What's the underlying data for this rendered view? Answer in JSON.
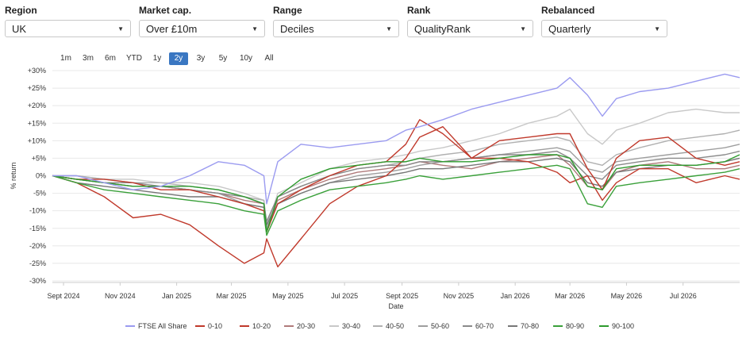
{
  "filters": {
    "region": {
      "label": "Region",
      "value": "UK"
    },
    "market_cap": {
      "label": "Market cap.",
      "value": "Over £10m"
    },
    "range": {
      "label": "Range",
      "value": "Deciles"
    },
    "rank": {
      "label": "Rank",
      "value": "QualityRank"
    },
    "rebalanced": {
      "label": "Rebalanced",
      "value": "Quarterly"
    }
  },
  "icons": {
    "dropdown": "caret-down-icon"
  },
  "ranges": {
    "items": [
      "1m",
      "3m",
      "6m",
      "YTD",
      "1y",
      "2y",
      "3y",
      "5y",
      "10y",
      "All"
    ],
    "active": "2y"
  },
  "chart_data": {
    "type": "line",
    "xlabel": "Date",
    "ylabel": "% return",
    "ylim": [
      -30,
      30
    ],
    "y_ticks": [
      "+30%",
      "+25%",
      "+20%",
      "+15%",
      "+10%",
      "+5%",
      "0%",
      "-5%",
      "-10%",
      "-15%",
      "-20%",
      "-25%",
      "-30%"
    ],
    "x_ticks": [
      "Sept 2024",
      "Nov 2024",
      "Jan 2025",
      "Mar 2025",
      "May 2025",
      "Jul 2025",
      "Sept 2025",
      "Nov 2025",
      "Jan 2026",
      "Mar 2026",
      "May 2026",
      "Jul 2026"
    ],
    "x": [
      "2024-08-20",
      "2024-09-15",
      "2024-10-15",
      "2024-11-15",
      "2024-12-15",
      "2025-01-15",
      "2025-02-15",
      "2025-03-15",
      "2025-04-05",
      "2025-04-08",
      "2025-04-20",
      "2025-05-15",
      "2025-06-15",
      "2025-07-15",
      "2025-08-15",
      "2025-09-05",
      "2025-09-20",
      "2025-10-15",
      "2025-11-15",
      "2025-12-15",
      "2026-01-15",
      "2026-02-15",
      "2026-03-01",
      "2026-03-20",
      "2026-04-05",
      "2026-04-20",
      "2026-05-15",
      "2026-06-15",
      "2026-07-15",
      "2026-08-15",
      "2026-08-31"
    ],
    "series": [
      {
        "name": "FTSE All Share",
        "color": "#9b9bf0",
        "values": [
          0,
          0,
          -2,
          -4,
          -3,
          0,
          4,
          3,
          0,
          -8,
          4,
          9,
          8,
          9,
          10,
          13,
          14,
          16,
          19,
          21,
          23,
          25,
          28,
          23,
          17,
          22,
          24,
          25,
          27,
          29,
          28
        ]
      },
      {
        "name": "0-10",
        "color": "#c0392b",
        "values": [
          0,
          -2,
          -6,
          -12,
          -11,
          -14,
          -20,
          -25,
          -22,
          -18,
          -26,
          -18,
          -8,
          -3,
          0,
          5,
          11,
          14,
          5,
          5,
          4,
          1,
          -2,
          0,
          -7,
          -2,
          2,
          2,
          -2,
          0,
          -1
        ]
      },
      {
        "name": "10-20",
        "color": "#c0392b",
        "values": [
          0,
          -1,
          -1,
          -2,
          -4,
          -4,
          -6,
          -8,
          -10,
          -16,
          -8,
          -4,
          0,
          3,
          4,
          9,
          16,
          12,
          5,
          10,
          11,
          12,
          12,
          2,
          -4,
          5,
          10,
          11,
          5,
          3,
          4
        ]
      },
      {
        "name": "20-30",
        "color": "#b07a7a",
        "values": [
          0,
          -1,
          -2,
          -3,
          -3,
          -4,
          -5,
          -7,
          -8,
          -14,
          -7,
          -4,
          -1,
          1,
          2,
          3,
          4,
          3,
          2,
          4,
          5,
          6,
          3,
          -3,
          -4,
          1,
          3,
          4,
          2,
          2,
          3
        ]
      },
      {
        "name": "30-40",
        "color": "#c8c8c8",
        "values": [
          0,
          0,
          -1,
          -1,
          -2,
          -2,
          -3,
          -5,
          -7,
          -15,
          -5,
          -2,
          2,
          4,
          5,
          6,
          7,
          8,
          10,
          12,
          15,
          17,
          19,
          12,
          9,
          13,
          15,
          18,
          19,
          18,
          18
        ]
      },
      {
        "name": "40-50",
        "color": "#b0b0b0",
        "values": [
          0,
          0,
          -1,
          -2,
          -2,
          -3,
          -4,
          -6,
          -7,
          -14,
          -6,
          -3,
          0,
          2,
          3,
          4,
          5,
          6,
          7,
          9,
          10,
          11,
          10,
          4,
          3,
          6,
          8,
          10,
          11,
          12,
          13
        ]
      },
      {
        "name": "50-60",
        "color": "#9e9e9e",
        "values": [
          0,
          -1,
          -2,
          -3,
          -3,
          -4,
          -5,
          -8,
          -9,
          -15,
          -8,
          -5,
          -2,
          0,
          1,
          2,
          3,
          4,
          5,
          6,
          7,
          8,
          7,
          2,
          1,
          4,
          5,
          6,
          7,
          8,
          9
        ]
      },
      {
        "name": "60-70",
        "color": "#8a8a8a",
        "values": [
          0,
          -1,
          -2,
          -2,
          -3,
          -4,
          -5,
          -6,
          -8,
          -13,
          -6,
          -3,
          0,
          2,
          3,
          3,
          4,
          4,
          5,
          6,
          6,
          7,
          5,
          0,
          -1,
          3,
          4,
          5,
          5,
          6,
          7
        ]
      },
      {
        "name": "70-80",
        "color": "#777777",
        "values": [
          0,
          -2,
          -3,
          -4,
          -5,
          -6,
          -6,
          -8,
          -9,
          -14,
          -8,
          -5,
          -2,
          -1,
          0,
          1,
          2,
          2,
          3,
          4,
          4,
          5,
          4,
          -2,
          -3,
          1,
          2,
          3,
          3,
          4,
          5
        ]
      },
      {
        "name": "80-90",
        "color": "#3aa03a",
        "values": [
          0,
          -2,
          -4,
          -5,
          -6,
          -7,
          -8,
          -10,
          -11,
          -17,
          -10,
          -7,
          -4,
          -3,
          -2,
          -1,
          0,
          -1,
          0,
          1,
          2,
          3,
          2,
          -8,
          -9,
          -3,
          -2,
          -1,
          0,
          1,
          2
        ]
      },
      {
        "name": "90-100",
        "color": "#2e9b2e",
        "values": [
          0,
          -1,
          -2,
          -3,
          -3,
          -3,
          -4,
          -6,
          -8,
          -16,
          -6,
          -1,
          2,
          3,
          4,
          4,
          5,
          4,
          4,
          5,
          6,
          6,
          5,
          -3,
          -4,
          2,
          3,
          3,
          3,
          4,
          6
        ]
      }
    ]
  }
}
